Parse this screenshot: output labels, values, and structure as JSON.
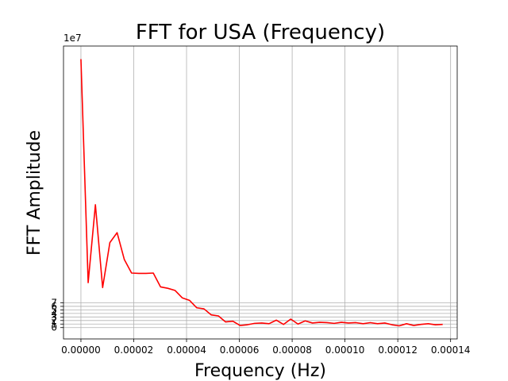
{
  "chart_data": {
    "type": "line",
    "title": "FFT for USA (Frequency)",
    "xlabel": "Frequency (Hz)",
    "ylabel": "FFT Amplitude",
    "y_offset_label": "1e7",
    "xlim": [
      -6.6e-06,
      0.0001425
    ],
    "ylim": [
      -3.2,
      79.5
    ],
    "x_ticks": [
      0,
      2e-05,
      4e-05,
      6e-05,
      8e-05,
      0.0001,
      0.00012,
      0.00014
    ],
    "x_tick_labels": [
      "0.00000",
      "0.00002",
      "0.00004",
      "0.00006",
      "0.00008",
      "0.00010",
      "0.00012",
      "0.00014"
    ],
    "y_ticks": [
      0,
      1,
      2,
      3,
      4,
      5,
      6,
      7
    ],
    "y_tick_labels": [
      "0",
      "1",
      "2",
      "3",
      "4",
      "5",
      "6",
      "7"
    ],
    "grid": true,
    "series": [
      {
        "color": "#ff0000",
        "x": [
          0,
          2.74e-06,
          5.48e-06,
          8.22e-06,
          1.096e-05,
          1.37e-05,
          1.644e-05,
          1.918e-05,
          2.192e-05,
          2.466e-05,
          2.74e-05,
          3.014e-05,
          3.288e-05,
          3.562e-05,
          3.836e-05,
          4.11e-05,
          4.384e-05,
          4.658e-05,
          4.932e-05,
          5.206e-05,
          5.48e-05,
          5.754e-05,
          6.028e-05,
          6.302e-05,
          6.576e-05,
          6.85e-05,
          7.124e-05,
          7.398e-05,
          7.672e-05,
          7.946e-05,
          8.22e-05,
          8.494e-05,
          8.768e-05,
          9.042e-05,
          9.316e-05,
          9.59e-05,
          9.864e-05,
          0.00010138,
          0.00010412,
          0.00010686,
          0.0001096,
          0.00011234,
          0.00011508,
          0.00011782,
          0.00012056,
          0.0001233,
          0.00012604,
          0.00012878,
          0.00013152,
          0.00013426,
          0.000137
        ],
        "y": [
          75.8,
          12.7,
          34.7,
          11.3,
          24.0,
          26.8,
          19.2,
          15.4,
          15.3,
          15.3,
          15.4,
          11.5,
          11.1,
          10.5,
          8.4,
          7.7,
          5.6,
          5.3,
          3.6,
          3.3,
          1.6,
          1.8,
          0.6,
          0.8,
          1.2,
          1.3,
          1.1,
          2.1,
          0.9,
          2.4,
          1.0,
          1.9,
          1.3,
          1.5,
          1.4,
          1.2,
          1.5,
          1.3,
          1.4,
          1.1,
          1.4,
          1.1,
          1.3,
          0.8,
          0.5,
          1.1,
          0.6,
          0.9,
          1.1,
          0.8,
          0.9
        ]
      }
    ]
  }
}
